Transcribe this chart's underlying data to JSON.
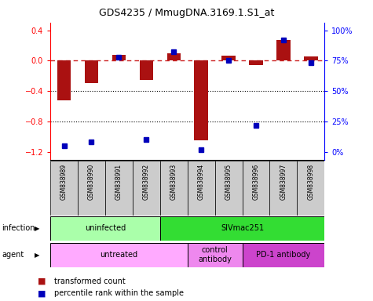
{
  "title": "GDS4235 / MmugDNA.3169.1.S1_at",
  "samples": [
    "GSM838989",
    "GSM838990",
    "GSM838991",
    "GSM838992",
    "GSM838993",
    "GSM838994",
    "GSM838995",
    "GSM838996",
    "GSM838997",
    "GSM838998"
  ],
  "transformed_count": [
    -0.52,
    -0.3,
    0.08,
    -0.25,
    0.1,
    -1.05,
    0.07,
    -0.06,
    0.27,
    0.05
  ],
  "percentile_rank": [
    5,
    8,
    78,
    10,
    82,
    2,
    75,
    22,
    92,
    73
  ],
  "ylim": [
    -1.3,
    0.5
  ],
  "left_yticks": [
    -1.2,
    -0.8,
    -0.4,
    0.0,
    0.4
  ],
  "right_yticks": [
    0,
    25,
    50,
    75,
    100
  ],
  "infection_groups": [
    {
      "label": "uninfected",
      "start": 0,
      "end": 4,
      "color": "#AAFFAA"
    },
    {
      "label": "SIVmac251",
      "start": 4,
      "end": 10,
      "color": "#33DD33"
    }
  ],
  "agent_groups": [
    {
      "label": "untreated",
      "start": 0,
      "end": 5,
      "color": "#FFAAFF"
    },
    {
      "label": "control\nantibody",
      "start": 5,
      "end": 7,
      "color": "#EE88EE"
    },
    {
      "label": "PD-1 antibody",
      "start": 7,
      "end": 10,
      "color": "#CC44CC"
    }
  ],
  "bar_color": "#AA1111",
  "point_color": "#0000BB",
  "dashed_line_color": "#CC2222",
  "sample_bg_color": "#CCCCCC",
  "bar_width": 0.5,
  "point_marker_size": 4
}
